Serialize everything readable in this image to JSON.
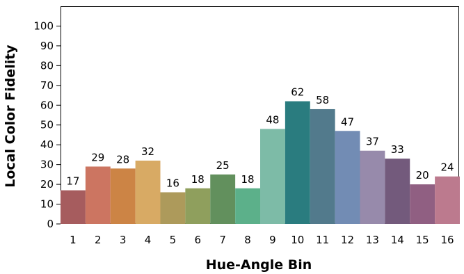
{
  "chart_data": {
    "type": "bar",
    "title": "",
    "xlabel": "Hue-Angle Bin",
    "ylabel": "Local Color Fidelity",
    "ylim": [
      0,
      110
    ],
    "yticks": [
      0,
      10,
      20,
      30,
      40,
      50,
      60,
      70,
      80,
      90,
      100
    ],
    "categories": [
      "1",
      "2",
      "3",
      "4",
      "5",
      "6",
      "7",
      "8",
      "9",
      "10",
      "11",
      "12",
      "13",
      "14",
      "15",
      "16"
    ],
    "values": [
      17,
      29,
      28,
      32,
      16,
      18,
      25,
      18,
      48,
      62,
      58,
      47,
      37,
      33,
      20,
      24
    ],
    "colors": [
      "#a65c5e",
      "#cc7561",
      "#cc8445",
      "#d8aa64",
      "#ad9a5b",
      "#8f9f5d",
      "#62905d",
      "#5cb08a",
      "#7dbba7",
      "#2a7c7f",
      "#527a8c",
      "#728cb4",
      "#978aab",
      "#735a7c",
      "#905f82",
      "#bc7a8e"
    ],
    "grid": false,
    "legend": "none"
  }
}
